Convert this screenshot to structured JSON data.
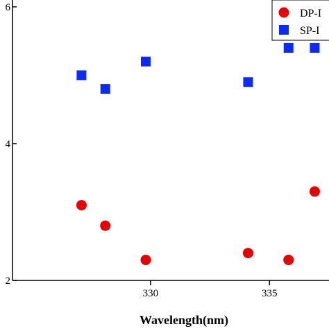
{
  "chart_data": {
    "type": "scatter",
    "xlabel": "Wavelength(nm)",
    "ylabel": "",
    "xlim": [
      324.2,
      337.5
    ],
    "ylim": [
      2.0,
      6.1
    ],
    "x_ticks": [
      330,
      335
    ],
    "y_ticks": [
      2,
      4,
      6
    ],
    "x_tick_labels": [
      "330",
      "335"
    ],
    "y_tick_labels": [
      "2",
      "4",
      "6"
    ],
    "legend_position": "top-right",
    "series": [
      {
        "name": "DP-I",
        "marker": "circle",
        "color": "#e60000",
        "x": [
          327.1,
          328.1,
          329.8,
          334.1,
          335.8,
          336.9
        ],
        "y": [
          3.1,
          2.8,
          2.3,
          2.4,
          2.3,
          3.3
        ]
      },
      {
        "name": "SP-I",
        "marker": "square",
        "color": "#0a2bff",
        "x": [
          327.1,
          328.1,
          329.8,
          334.1,
          335.8,
          336.9
        ],
        "y": [
          5.0,
          4.8,
          5.2,
          4.9,
          5.4,
          5.4
        ]
      }
    ]
  }
}
